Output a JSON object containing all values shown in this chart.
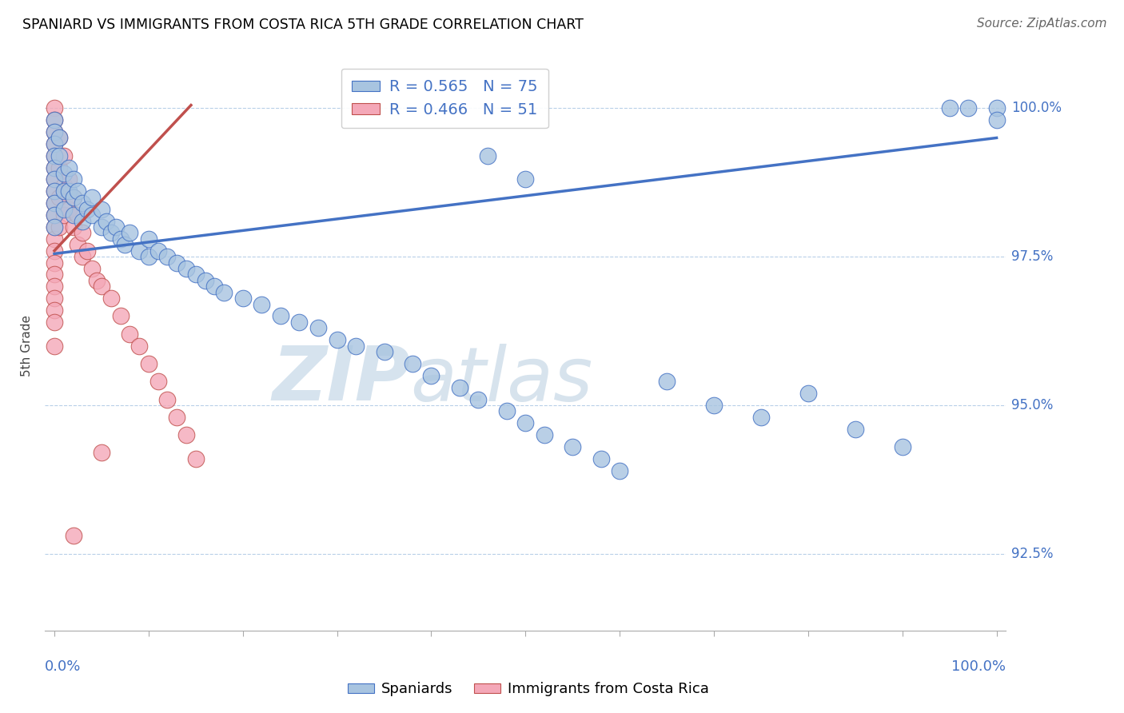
{
  "title": "SPANIARD VS IMMIGRANTS FROM COSTA RICA 5TH GRADE CORRELATION CHART",
  "source": "Source: ZipAtlas.com",
  "ylabel": "5th Grade",
  "legend_blue_label": "Spaniards",
  "legend_pink_label": "Immigrants from Costa Rica",
  "R_blue": 0.565,
  "N_blue": 75,
  "R_pink": 0.466,
  "N_pink": 51,
  "yticks": [
    92.5,
    95.0,
    97.5,
    100.0
  ],
  "ylim": [
    91.2,
    100.8
  ],
  "xlim": [
    -0.01,
    1.01
  ],
  "blue_color": "#a8c4e0",
  "pink_color": "#f4a8b8",
  "trend_blue": "#4472c4",
  "trend_pink": "#c0504d",
  "watermark_zip": "ZIP",
  "watermark_atlas": "atlas",
  "blue_x": [
    0.0,
    0.0,
    0.0,
    0.0,
    0.0,
    0.0,
    0.0,
    0.0,
    0.0,
    0.0,
    0.005,
    0.005,
    0.01,
    0.01,
    0.01,
    0.015,
    0.015,
    0.02,
    0.02,
    0.02,
    0.025,
    0.03,
    0.03,
    0.035,
    0.04,
    0.04,
    0.05,
    0.05,
    0.055,
    0.06,
    0.065,
    0.07,
    0.075,
    0.08,
    0.09,
    0.1,
    0.1,
    0.11,
    0.12,
    0.13,
    0.14,
    0.15,
    0.16,
    0.17,
    0.18,
    0.2,
    0.22,
    0.24,
    0.26,
    0.28,
    0.3,
    0.32,
    0.35,
    0.38,
    0.4,
    0.43,
    0.45,
    0.48,
    0.5,
    0.52,
    0.55,
    0.58,
    0.6,
    0.65,
    0.7,
    0.75,
    0.8,
    0.85,
    0.9,
    0.95,
    0.97,
    1.0,
    1.0,
    0.46,
    0.5
  ],
  "blue_y": [
    99.8,
    99.6,
    99.4,
    99.2,
    99.0,
    98.8,
    98.6,
    98.4,
    98.2,
    98.0,
    99.5,
    99.2,
    98.9,
    98.6,
    98.3,
    99.0,
    98.6,
    98.8,
    98.5,
    98.2,
    98.6,
    98.4,
    98.1,
    98.3,
    98.5,
    98.2,
    98.3,
    98.0,
    98.1,
    97.9,
    98.0,
    97.8,
    97.7,
    97.9,
    97.6,
    97.8,
    97.5,
    97.6,
    97.5,
    97.4,
    97.3,
    97.2,
    97.1,
    97.0,
    96.9,
    96.8,
    96.7,
    96.5,
    96.4,
    96.3,
    96.1,
    96.0,
    95.9,
    95.7,
    95.5,
    95.3,
    95.1,
    94.9,
    94.7,
    94.5,
    94.3,
    94.1,
    93.9,
    95.4,
    95.0,
    94.8,
    95.2,
    94.6,
    94.3,
    100.0,
    100.0,
    100.0,
    99.8,
    99.2,
    98.8
  ],
  "pink_x": [
    0.0,
    0.0,
    0.0,
    0.0,
    0.0,
    0.0,
    0.0,
    0.0,
    0.0,
    0.0,
    0.0,
    0.0,
    0.0,
    0.0,
    0.0,
    0.0,
    0.0,
    0.0,
    0.0,
    0.0,
    0.005,
    0.005,
    0.005,
    0.005,
    0.01,
    0.01,
    0.01,
    0.015,
    0.015,
    0.02,
    0.02,
    0.025,
    0.025,
    0.03,
    0.03,
    0.035,
    0.04,
    0.045,
    0.05,
    0.06,
    0.07,
    0.08,
    0.09,
    0.1,
    0.11,
    0.12,
    0.13,
    0.14,
    0.15,
    0.05,
    0.02
  ],
  "pink_y": [
    100.0,
    99.8,
    99.6,
    99.4,
    99.2,
    99.0,
    98.8,
    98.6,
    98.4,
    98.2,
    98.0,
    97.8,
    97.6,
    97.4,
    97.2,
    97.0,
    96.8,
    96.6,
    96.4,
    96.0,
    99.5,
    99.0,
    98.5,
    98.0,
    99.2,
    98.7,
    98.2,
    98.8,
    98.3,
    98.5,
    98.0,
    98.2,
    97.7,
    97.9,
    97.5,
    97.6,
    97.3,
    97.1,
    97.0,
    96.8,
    96.5,
    96.2,
    96.0,
    95.7,
    95.4,
    95.1,
    94.8,
    94.5,
    94.1,
    94.2,
    92.8
  ],
  "blue_trend_x": [
    0.0,
    1.0
  ],
  "blue_trend_y": [
    97.55,
    99.5
  ],
  "pink_trend_x": [
    0.0,
    0.145
  ],
  "pink_trend_y": [
    97.6,
    100.05
  ]
}
